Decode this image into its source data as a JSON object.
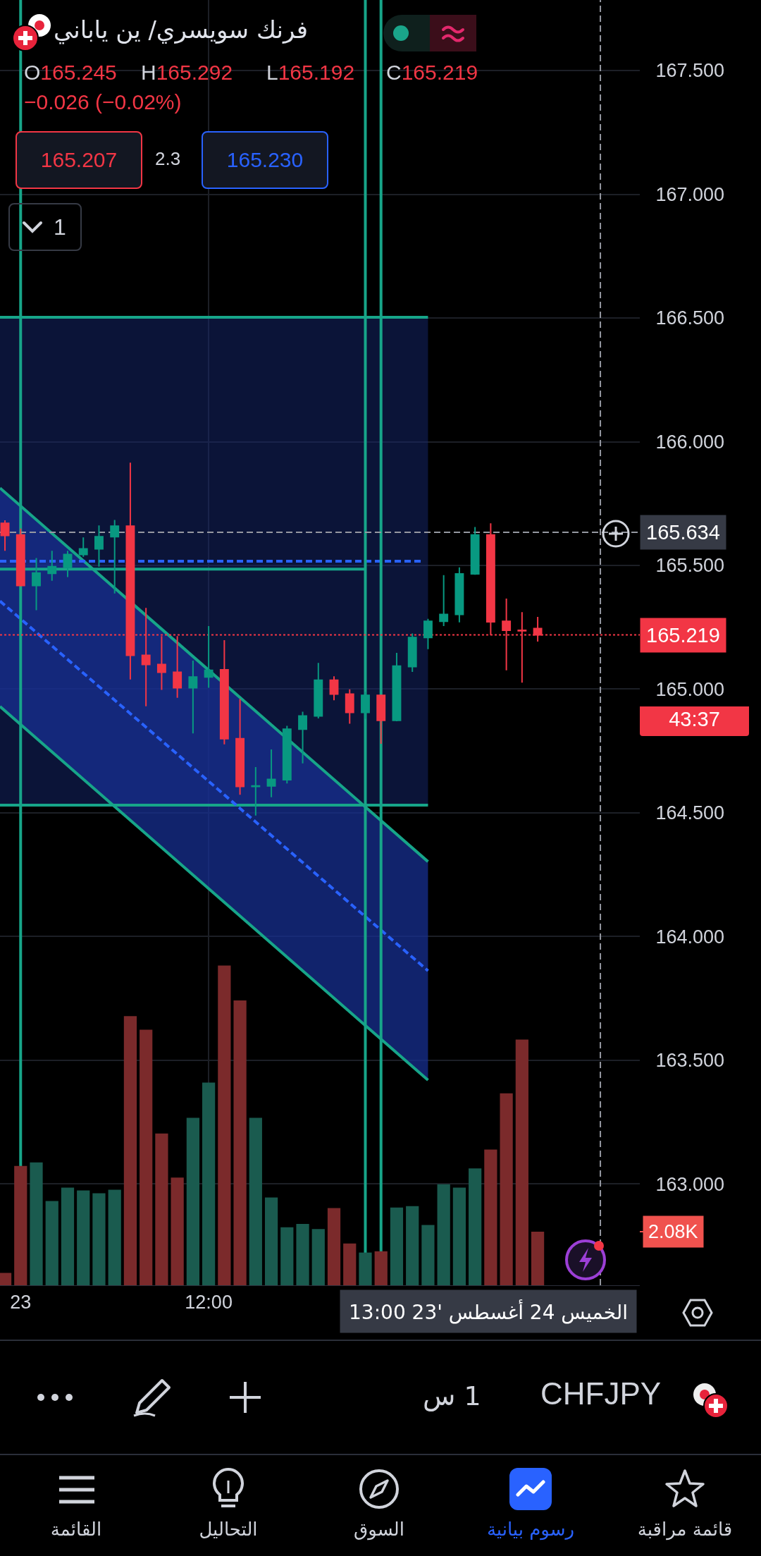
{
  "chart_data": {
    "type": "candlestick",
    "title": "فرنك سويسري/ ين ياباني",
    "x": [
      "2023-08-22T23:00",
      "2023-08-23T00:00",
      "2023-08-23T01:00",
      "2023-08-23T02:00",
      "2023-08-23T03:00",
      "2023-08-23T04:00",
      "2023-08-23T05:00",
      "2023-08-23T06:00",
      "2023-08-23T07:00",
      "2023-08-23T08:00",
      "2023-08-23T09:00",
      "2023-08-23T10:00",
      "2023-08-23T11:00",
      "2023-08-23T12:00",
      "2023-08-23T13:00",
      "2023-08-23T14:00",
      "2023-08-23T15:00",
      "2023-08-23T16:00",
      "2023-08-23T17:00",
      "2023-08-23T18:00",
      "2023-08-23T19:00",
      "2023-08-23T20:00",
      "2023-08-23T21:00",
      "2023-08-23T22:00",
      "2023-08-23T23:00",
      "2023-08-24T00:00",
      "2023-08-24T01:00",
      "2023-08-24T02:00",
      "2023-08-24T03:00",
      "2023-08-24T04:00",
      "2023-08-24T05:00",
      "2023-08-24T06:00",
      "2023-08-24T07:00",
      "2023-08-24T08:00",
      "2023-08-24T09:00"
    ],
    "ohlc": [
      [
        165.67,
        165.682,
        165.559,
        165.621
      ],
      [
        165.623,
        165.649,
        165.415,
        165.419
      ],
      [
        165.419,
        165.53,
        165.319,
        165.469
      ],
      [
        165.468,
        165.559,
        165.438,
        165.495
      ],
      [
        165.493,
        165.559,
        165.453,
        165.544
      ],
      [
        165.544,
        165.613,
        165.535,
        165.567
      ],
      [
        165.567,
        165.662,
        165.495,
        165.616
      ],
      [
        165.616,
        165.684,
        165.387,
        165.659
      ],
      [
        165.659,
        165.915,
        165.039,
        165.137
      ],
      [
        165.137,
        165.328,
        164.931,
        165.1
      ],
      [
        165.1,
        165.214,
        164.997,
        165.068
      ],
      [
        165.068,
        165.214,
        164.965,
        165.006
      ],
      [
        165.006,
        165.115,
        164.821,
        165.049
      ],
      [
        165.049,
        165.255,
        165.006,
        165.076
      ],
      [
        165.078,
        165.198,
        164.777,
        164.8
      ],
      [
        164.8,
        164.96,
        164.573,
        164.607
      ],
      [
        164.607,
        164.685,
        164.489,
        164.609
      ],
      [
        164.609,
        164.756,
        164.563,
        164.635
      ],
      [
        164.634,
        164.852,
        164.619,
        164.838
      ],
      [
        164.838,
        164.909,
        164.7,
        164.892
      ],
      [
        164.892,
        165.106,
        164.882,
        165.036
      ],
      [
        165.036,
        165.052,
        164.955,
        164.98
      ],
      [
        164.98,
        164.999,
        164.86,
        164.906
      ],
      [
        164.906,
        164.99,
        164.88,
        164.975
      ],
      [
        164.975,
        164.975,
        164.779,
        164.874
      ],
      [
        164.874,
        165.147,
        164.87,
        165.093
      ],
      [
        165.091,
        165.225,
        165.07,
        165.209
      ],
      [
        165.209,
        165.284,
        165.162,
        165.274
      ],
      [
        165.274,
        165.461,
        165.255,
        165.302
      ],
      [
        165.302,
        165.492,
        165.27,
        165.466
      ],
      [
        165.466,
        165.655,
        165.462,
        165.623
      ],
      [
        165.623,
        165.67,
        165.218,
        165.272
      ],
      [
        165.274,
        165.366,
        165.076,
        165.238
      ],
      [
        165.238,
        165.311,
        165.026,
        165.236
      ],
      [
        165.245,
        165.292,
        165.192,
        165.219
      ]
    ],
    "colors": [
      "#f23645",
      "#f23645",
      "#089981",
      "#089981",
      "#089981",
      "#089981",
      "#089981",
      "#089981",
      "#f23645",
      "#f23645",
      "#f23645",
      "#f23645",
      "#089981",
      "#089981",
      "#f23645",
      "#f23645",
      "#089981",
      "#089981",
      "#089981",
      "#089981",
      "#089981",
      "#f23645",
      "#f23645",
      "#089981",
      "#f23645",
      "#089981",
      "#089981",
      "#089981",
      "#089981",
      "#089981",
      "#089981",
      "#f23645",
      "#f23645",
      "#f23645",
      "#f23645"
    ],
    "xlim": [
      "2023-08-22T22:41",
      "2023-08-24T15:31"
    ],
    "xticks": [
      {
        "value": "2023-08-23T00:00",
        "label": "23"
      },
      {
        "value": "2023-08-23T12:00",
        "label": "12:00"
      }
    ],
    "ylim": [
      162.591,
      167.785
    ],
    "yticks": [
      {
        "value": 163,
        "label": "163.000"
      },
      {
        "value": 163.5,
        "label": "163.500"
      },
      {
        "value": 164,
        "label": "164.000"
      },
      {
        "value": 164.5,
        "label": "164.500"
      },
      {
        "value": 165,
        "label": "165.000"
      },
      {
        "value": 165.5,
        "label": "165.500"
      },
      {
        "value": 166,
        "label": "166.000"
      },
      {
        "value": 166.5,
        "label": "166.500"
      },
      {
        "value": 167,
        "label": "167.000"
      },
      {
        "value": 167.5,
        "label": "167.500"
      }
    ],
    "y2lim": [
      0,
      49.9
    ],
    "y2ticks": [
      {
        "value": 2.08,
        "label": "2.08K"
      }
    ],
    "grid": true,
    "series": [
      {
        "type": "bar",
        "axis": "y2",
        "values": [
          0.48,
          4.63,
          4.77,
          3.27,
          3.79,
          3.68,
          3.57,
          3.71,
          10.45,
          9.92,
          5.89,
          4.18,
          6.5,
          7.87,
          12.41,
          11.06,
          6.5,
          3.41,
          2.25,
          2.38,
          2.18,
          3.0,
          1.62,
          1.27,
          1.32,
          3.02,
          3.07,
          2.34,
          3.92,
          3.79,
          4.54,
          5.27,
          7.45,
          9.54,
          2.08
        ],
        "colors": [
          "#7b2a2b",
          "#7b2a2b",
          "#1a5b4f",
          "#1a5b4f",
          "#1a5b4f",
          "#1a5b4f",
          "#1a5b4f",
          "#1a5b4f",
          "#7b2a2b",
          "#7b2a2b",
          "#7b2a2b",
          "#7b2a2b",
          "#1a5b4f",
          "#1a5b4f",
          "#7b2a2b",
          "#7b2a2b",
          "#1a5b4f",
          "#1a5b4f",
          "#1a5b4f",
          "#1a5b4f",
          "#1a5b4f",
          "#7b2a2b",
          "#7b2a2b",
          "#1a5b4f",
          "#7b2a2b",
          "#1a5b4f",
          "#1a5b4f",
          "#1a5b4f",
          "#1a5b4f",
          "#1a5b4f",
          "#1a5b4f",
          "#7b2a2b",
          "#7b2a2b",
          "#7b2a2b",
          "#7b2a2b"
        ]
      },
      {
        "type": "line",
        "x": [
          "2023-08-22T22:41",
          "2023-08-24T02:00"
        ],
        "values": [
          166.503,
          166.503
        ],
        "lower": [
          164.531,
          164.531
        ],
        "upper": [
          166.503,
          166.503
        ],
        "color": "#17a589",
        "line_style": "solid"
      },
      {
        "type": "line",
        "x": [
          "2023-08-22T22:41",
          "2023-08-24T02:00"
        ],
        "values": [
          164.531,
          164.531
        ],
        "color": "#17a589",
        "line_style": "solid"
      },
      {
        "type": "line",
        "x": [
          "2023-08-22T22:41",
          "2023-08-24T02:00"
        ],
        "values": [
          165.813,
          164.303
        ],
        "color": "#17a589",
        "line_style": "solid"
      },
      {
        "type": "line",
        "x": [
          "2023-08-22T22:41",
          "2023-08-24T02:00"
        ],
        "values": [
          164.93,
          163.42
        ],
        "color": "#17a589",
        "line_style": "solid"
      },
      {
        "type": "line",
        "x": [
          "2023-08-22T22:41",
          "2023-08-24T02:00"
        ],
        "values": [
          165.356,
          163.862
        ],
        "lower": [
          164.93,
          163.42
        ],
        "upper": [
          165.813,
          164.303
        ],
        "color": "#2962ff",
        "line_style": "dashed"
      },
      {
        "type": "line",
        "x": [
          "2023-08-22T22:41",
          "2023-08-23T22:00"
        ],
        "values": [
          165.485,
          165.485
        ],
        "color": "#17a589",
        "line_style": "solid"
      },
      {
        "type": "line",
        "x": [
          "2023-08-22T22:41",
          "2023-08-24T01:36"
        ],
        "values": [
          165.517,
          165.517
        ],
        "color": "#2962ff",
        "line_style": "dashed"
      }
    ],
    "ref_lines": [
      {
        "axis": "x",
        "value": "2023-08-23T00:00",
        "color": "#17a589",
        "line_style": "solid"
      },
      {
        "axis": "x",
        "value": "2023-08-23T22:00",
        "color": "#17a589",
        "line_style": "solid"
      },
      {
        "axis": "x",
        "value": "2023-08-23T23:00",
        "color": "#17a589",
        "line_style": "solid"
      },
      {
        "axis": "x",
        "value": "2023-08-24T13:00",
        "label": "الخميس 24 أغسطس '23 13:00",
        "color": "#9598a1",
        "line_style": "dashed"
      },
      {
        "axis": "y",
        "value": 165.634,
        "label": "165.634",
        "color": "#9598a1",
        "line_style": "dashed"
      },
      {
        "axis": "y",
        "value": 165.219,
        "label": "165.219",
        "color": "#f23645",
        "line_style": "dotted"
      }
    ],
    "annotations": [
      "O165.245",
      "H165.292",
      "L165.192",
      "C165.219",
      "−0.026 (−0.02%)",
      "165.207",
      "2.3",
      "165.230",
      "1",
      "43:37",
      "CHFJPY",
      "1 س",
      "قائمة مراقبة",
      "رسوم بيانية",
      "السوق",
      "التحاليل",
      "القائمة"
    ]
  }
}
